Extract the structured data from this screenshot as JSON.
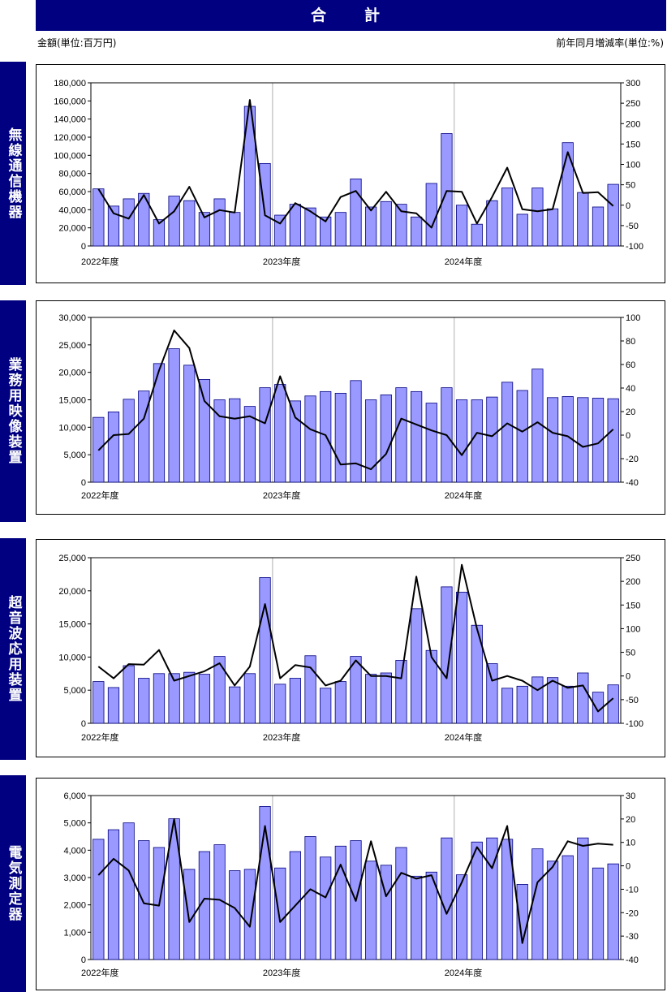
{
  "header": {
    "title": "合　計",
    "unit_left": "金額(単位:百万円)",
    "unit_right": "前年同月増減率(単位:%)"
  },
  "colors": {
    "bar_fill": "#9999FF",
    "bar_stroke": "#000080",
    "line": "#000000",
    "header_bg": "#000080"
  },
  "chart_data": [
    {
      "type": "bar+line",
      "label": "無線通信機器",
      "x_labels": [
        "2022年度",
        "2023年度",
        "2024年度"
      ],
      "ylim": [
        0,
        180000
      ],
      "y_ticks": [
        "0",
        "20,000",
        "40,000",
        "60,000",
        "80,000",
        "100,000",
        "120,000",
        "140,000",
        "160,000",
        "180,000"
      ],
      "y2lim": [
        -100,
        300
      ],
      "y2_ticks": [
        "-100",
        "-50",
        "0",
        "50",
        "100",
        "150",
        "200",
        "250",
        "300"
      ],
      "bars": [
        63000,
        44000,
        52000,
        58000,
        29000,
        55000,
        50000,
        37000,
        52000,
        37000,
        154000,
        91000,
        34000,
        46000,
        42000,
        32000,
        37000,
        74000,
        43000,
        49000,
        46000,
        32000,
        69000,
        124000,
        45000,
        24000,
        50000,
        64000,
        35000,
        64000,
        41000,
        114000,
        59000,
        43000,
        68000
      ],
      "line": [
        40,
        -20,
        -33,
        25,
        -45,
        -15,
        45,
        -30,
        -12,
        -18,
        258,
        -25,
        -45,
        5,
        -15,
        -40,
        20,
        35,
        -13,
        33,
        -15,
        -20,
        -55,
        35,
        33,
        -45,
        20,
        92,
        -10,
        -15,
        -10,
        130,
        30,
        32,
        -2
      ]
    },
    {
      "type": "bar+line",
      "label": "業務用映像装置",
      "x_labels": [
        "2022年度",
        "2023年度",
        "2024年度"
      ],
      "ylim": [
        0,
        30000
      ],
      "y_ticks": [
        "0",
        "5,000",
        "10,000",
        "15,000",
        "20,000",
        "25,000",
        "30,000"
      ],
      "y2lim": [
        -40,
        100
      ],
      "y2_ticks": [
        "-40",
        "-20",
        "0",
        "20",
        "40",
        "60",
        "80",
        "100"
      ],
      "bars": [
        11800,
        12800,
        15100,
        16600,
        21600,
        24300,
        21300,
        18700,
        15000,
        15200,
        13800,
        17200,
        17800,
        14800,
        15700,
        16500,
        16200,
        18500,
        15000,
        15900,
        17200,
        16500,
        14400,
        17200,
        15000,
        15000,
        15500,
        18200,
        16700,
        20600,
        15400,
        15600,
        15400,
        15300,
        15200
      ],
      "line": [
        -13,
        0,
        1,
        14,
        55,
        89,
        74,
        29,
        16,
        14,
        16,
        10,
        50,
        15,
        5,
        0,
        -25,
        -24,
        -29,
        -16,
        14,
        9,
        4,
        0,
        -17,
        2,
        -1,
        10,
        3,
        11,
        2,
        -1,
        -10,
        -7,
        5
      ]
    },
    {
      "type": "bar+line",
      "label": "超音波応用装置",
      "x_labels": [
        "2022年度",
        "2023年度",
        "2024年度"
      ],
      "ylim": [
        0,
        25000
      ],
      "y_ticks": [
        "0",
        "5,000",
        "10,000",
        "15,000",
        "20,000",
        "25,000"
      ],
      "y2lim": [
        -100,
        250
      ],
      "y2_ticks": [
        "-100",
        "-50",
        "0",
        "50",
        "100",
        "150",
        "200",
        "250"
      ],
      "bars": [
        6300,
        5400,
        8700,
        6800,
        7500,
        7500,
        7700,
        7400,
        10100,
        5500,
        7500,
        22000,
        5900,
        6800,
        10200,
        5300,
        6300,
        10100,
        7400,
        7600,
        9500,
        17300,
        11000,
        20600,
        19800,
        14800,
        9000,
        5300,
        5600,
        7000,
        6900,
        5600,
        7600,
        4700,
        5800
      ],
      "line": [
        20,
        -5,
        25,
        24,
        55,
        -10,
        0,
        10,
        27,
        -20,
        20,
        152,
        -5,
        23,
        18,
        -20,
        -10,
        33,
        0,
        0,
        -5,
        210,
        40,
        -5,
        235,
        100,
        -10,
        0,
        -10,
        -30,
        -10,
        -25,
        -20,
        -75,
        -47
      ]
    },
    {
      "type": "bar+line",
      "label": "電気測定器",
      "x_labels": [
        "2022年度",
        "2023年度",
        "2024年度"
      ],
      "ylim": [
        0,
        6000
      ],
      "y_ticks": [
        "0",
        "1,000",
        "2,000",
        "3,000",
        "4,000",
        "5,000",
        "6,000"
      ],
      "y2lim": [
        -40,
        30
      ],
      "y2_ticks": [
        "-40",
        "-30",
        "-20",
        "-10",
        "0",
        "10",
        "20",
        "30"
      ],
      "bars": [
        4400,
        4750,
        5000,
        4350,
        4100,
        5150,
        3300,
        3950,
        4200,
        3250,
        3300,
        5600,
        3350,
        3950,
        4500,
        3750,
        4150,
        4350,
        3600,
        3450,
        4100,
        3050,
        3200,
        4450,
        3100,
        4300,
        4450,
        4400,
        2750,
        4050,
        3600,
        3800,
        4450,
        3350,
        3500
      ],
      "line": [
        -4,
        3,
        -2,
        -16,
        -17,
        20,
        -24,
        -14,
        -14.5,
        -18,
        -26,
        17,
        -24,
        -17,
        -10,
        -13.5,
        0.5,
        -15,
        10.5,
        -13,
        -3,
        -5.5,
        -4,
        -20.5,
        -7,
        8,
        -1,
        17,
        -33,
        -7,
        -0.5,
        10.5,
        8.5,
        9.5,
        9
      ]
    }
  ]
}
